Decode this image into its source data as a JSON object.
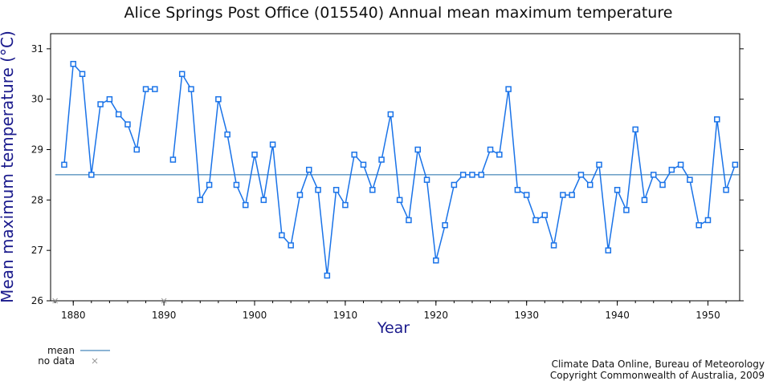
{
  "chart_data": {
    "type": "line",
    "title": "Alice Springs Post Office (015540) Annual mean maximum temperature",
    "xlabel": "Year",
    "ylabel": "Mean maximum temperature (°C)",
    "xlim": [
      1877.5,
      1953.5
    ],
    "ylim": [
      26,
      31.3
    ],
    "x_ticks": [
      1880,
      1890,
      1900,
      1910,
      1920,
      1930,
      1940,
      1950
    ],
    "y_ticks": [
      26,
      27,
      28,
      29,
      30,
      31
    ],
    "mean": 28.5,
    "no_data_years": [
      1878,
      1890
    ],
    "series": [
      {
        "type": "line",
        "color": "#1a73e8",
        "marker": "square",
        "segments": [
          {
            "x": [
              1879,
              1880,
              1881,
              1882,
              1883,
              1884,
              1885,
              1886,
              1887,
              1888,
              1889
            ],
            "y": [
              28.7,
              30.7,
              30.5,
              28.5,
              29.9,
              30.0,
              29.7,
              29.5,
              29.0,
              30.2,
              30.2
            ]
          },
          {
            "x": [
              1891,
              1892,
              1893,
              1894,
              1895,
              1896,
              1897,
              1898,
              1899,
              1900,
              1901,
              1902,
              1903,
              1904,
              1905,
              1906,
              1907,
              1908,
              1909,
              1910,
              1911,
              1912,
              1913,
              1914,
              1915,
              1916,
              1917,
              1918,
              1919,
              1920,
              1921,
              1922,
              1923,
              1924,
              1925,
              1926,
              1927,
              1928,
              1929,
              1930,
              1931,
              1932,
              1933,
              1934,
              1935,
              1936,
              1937,
              1938,
              1939,
              1940,
              1941,
              1942,
              1943,
              1944,
              1945,
              1946,
              1947,
              1948,
              1949,
              1950,
              1951,
              1952,
              1953
            ],
            "y": [
              28.8,
              30.5,
              30.2,
              28.0,
              28.3,
              30.0,
              29.3,
              28.3,
              27.9,
              28.9,
              28.0,
              29.1,
              27.3,
              27.1,
              28.1,
              28.6,
              28.2,
              26.5,
              28.2,
              27.9,
              28.9,
              28.7,
              28.2,
              28.8,
              29.7,
              28.0,
              27.6,
              29.0,
              28.4,
              26.8,
              27.5,
              28.3,
              28.5,
              28.5,
              28.5,
              29.0,
              28.9,
              30.2,
              28.2,
              28.1,
              27.6,
              27.7,
              27.1,
              28.1,
              28.1,
              28.5,
              28.3,
              28.7,
              27.0,
              28.2,
              27.8,
              29.4,
              28.0,
              28.5,
              28.3,
              28.6,
              28.7,
              28.4,
              27.5,
              27.6,
              29.6,
              28.2,
              28.7
            ]
          }
        ]
      }
    ],
    "legend": {
      "position": "bottom-left",
      "items": [
        {
          "label": "mean",
          "symbol": "line",
          "color": "#1a6aa8"
        },
        {
          "label": "no data",
          "symbol": "x",
          "color": "#999999"
        }
      ]
    },
    "grid": false
  },
  "credit": {
    "line1": "Climate Data Online, Bureau of Meteorology",
    "line2": "Copyright Commonwealth of Australia, 2009"
  }
}
